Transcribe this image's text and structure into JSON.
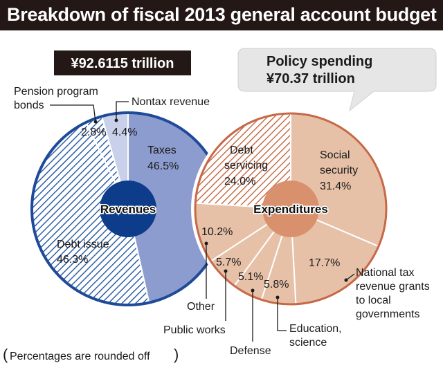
{
  "title": "Breakdown of fiscal 2013 general account budget",
  "note": "Percentages are rounded off",
  "colors": {
    "revenue_fill": "#8d9ccf",
    "revenue_light": "#c9d1ea",
    "revenue_hatch": "#2f5fa8",
    "revenue_border": "#1e4a98",
    "revenue_center": "#0d3c8a",
    "expense_fill": "#e6c1a8",
    "expense_hatch": "#c86e4a",
    "expense_border": "#c76846",
    "expense_center": "#d9916d",
    "dark_box": "#231815",
    "callout_box": "#e6e6e6"
  },
  "chart_data": [
    {
      "type": "pie",
      "name": "Revenues",
      "total_label": "¥92.6115 trillion",
      "slices": [
        {
          "label": "Taxes",
          "value": 46.5,
          "display": "46.5%"
        },
        {
          "label": "Debt issue",
          "value": 46.3,
          "display": "46.3%"
        },
        {
          "label": "Pension program bonds",
          "value": 2.8,
          "display": "2.8%"
        },
        {
          "label": "Nontax revenue",
          "value": 4.4,
          "display": "4.4%"
        }
      ],
      "labels": {
        "taxes": "Taxes",
        "debt_issue": "Debt issue",
        "pension_line1": "Pension program",
        "pension_line2": "bonds",
        "nontax": "Nontax revenue"
      }
    },
    {
      "type": "pie",
      "name": "Expenditures",
      "policy_spending_label": "Policy spending",
      "policy_spending_value": "¥70.37 trillion",
      "slices": [
        {
          "label": "Social security",
          "value": 31.4,
          "display": "31.4%"
        },
        {
          "label": "National tax revenue grants to local governments",
          "value": 17.7,
          "display": "17.7%"
        },
        {
          "label": "Education, science",
          "value": 5.8,
          "display": "5.8%"
        },
        {
          "label": "Defense",
          "value": 5.1,
          "display": "5.1%"
        },
        {
          "label": "Public works",
          "value": 5.7,
          "display": "5.7%"
        },
        {
          "label": "Other",
          "value": 10.2,
          "display": "10.2%"
        },
        {
          "label": "Debt servicing",
          "value": 24.0,
          "display": "24.0%"
        }
      ],
      "labels": {
        "social1": "Social",
        "social2": "security",
        "grants1": "National tax",
        "grants2": "revenue grants",
        "grants3": "to local",
        "grants4": "governments",
        "edu1": "Education,",
        "edu2": "science",
        "defense": "Defense",
        "public_works": "Public works",
        "other": "Other",
        "debt1": "Debt",
        "debt2": "servicing"
      }
    }
  ]
}
